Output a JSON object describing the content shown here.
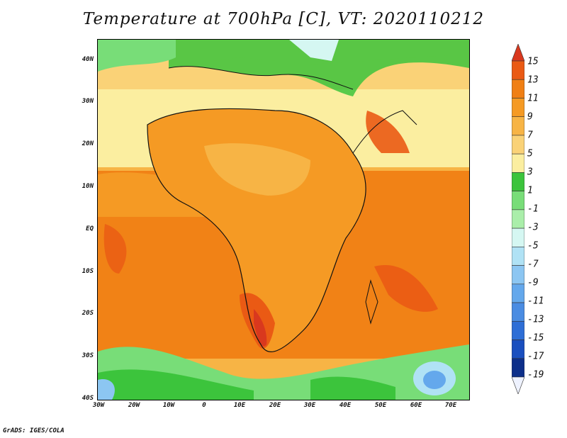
{
  "title": "Temperature at 700hPa [C], VT: 2020110212",
  "footer": "GrADS: IGES/COLA",
  "map": {
    "lon_range": [
      -30,
      75
    ],
    "lat_range": [
      -40,
      45
    ],
    "lat_labels": [
      "40N",
      "30N",
      "20N",
      "10N",
      "EQ",
      "10S",
      "20S",
      "30S",
      "40S"
    ],
    "lon_labels": [
      "30W",
      "20W",
      "10W",
      "0",
      "10E",
      "20E",
      "30E",
      "40E",
      "50E",
      "60E",
      "70E"
    ]
  },
  "colorbar": {
    "labels": [
      "15",
      "13",
      "11",
      "9",
      "7",
      "5",
      "3",
      "1",
      "-1",
      "-3",
      "-5",
      "-7",
      "-9",
      "-11",
      "-13",
      "-15",
      "-17",
      "-19"
    ],
    "colors": [
      "#d9381e",
      "#ea5a14",
      "#f07f14",
      "#f59a24",
      "#f7b445",
      "#fad277",
      "#fbeea0",
      "#3cc43c",
      "#78dd78",
      "#aaeeaa",
      "#d5f7f2",
      "#b0e2f5",
      "#8cc6f2",
      "#64a8ec",
      "#4a8ce2",
      "#2e6ed6",
      "#1a4fbf",
      "#0d2f8a",
      "#0a1a5c"
    ]
  }
}
